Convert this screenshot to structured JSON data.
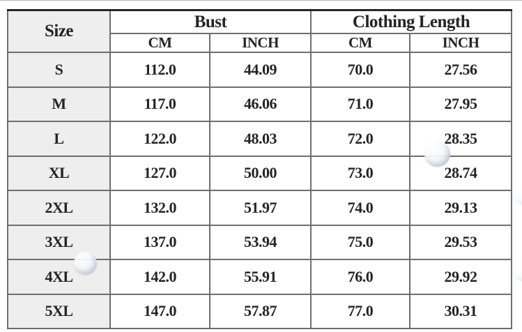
{
  "table": {
    "header": {
      "size": "Size",
      "bust": "Bust",
      "clothing_length": "Clothing Length",
      "units": [
        "CM",
        "INCH",
        "CM",
        "INCH"
      ]
    },
    "rows": [
      {
        "size": "S",
        "bust_cm": "112.0",
        "bust_inch": "44.09",
        "length_cm": "70.0",
        "length_inch": "27.56"
      },
      {
        "size": "M",
        "bust_cm": "117.0",
        "bust_inch": "46.06",
        "length_cm": "71.0",
        "length_inch": "27.95"
      },
      {
        "size": "L",
        "bust_cm": "122.0",
        "bust_inch": "48.03",
        "length_cm": "72.0",
        "length_inch": "28.35"
      },
      {
        "size": "XL",
        "bust_cm": "127.0",
        "bust_inch": "50.00",
        "length_cm": "73.0",
        "length_inch": "28.74"
      },
      {
        "size": "2XL",
        "bust_cm": "132.0",
        "bust_inch": "51.97",
        "length_cm": "74.0",
        "length_inch": "29.13"
      },
      {
        "size": "3XL",
        "bust_cm": "137.0",
        "bust_inch": "53.94",
        "length_cm": "75.0",
        "length_inch": "29.53"
      },
      {
        "size": "4XL",
        "bust_cm": "142.0",
        "bust_inch": "55.91",
        "length_cm": "76.0",
        "length_inch": "29.92"
      },
      {
        "size": "5XL",
        "bust_cm": "147.0",
        "bust_inch": "57.87",
        "length_cm": "77.0",
        "length_inch": "30.31"
      }
    ]
  },
  "chart_data": {
    "type": "table",
    "column_groups": [
      "Size",
      "Bust",
      "Clothing Length"
    ],
    "columns": [
      "Size",
      "Bust (CM)",
      "Bust (INCH)",
      "Clothing Length (CM)",
      "Clothing Length (INCH)"
    ],
    "rows": [
      [
        "S",
        112.0,
        44.09,
        70.0,
        27.56
      ],
      [
        "M",
        117.0,
        46.06,
        71.0,
        27.95
      ],
      [
        "L",
        122.0,
        48.03,
        72.0,
        28.35
      ],
      [
        "XL",
        127.0,
        50.0,
        73.0,
        28.74
      ],
      [
        "2XL",
        132.0,
        51.97,
        74.0,
        29.13
      ],
      [
        "3XL",
        137.0,
        53.94,
        75.0,
        29.53
      ],
      [
        "4XL",
        142.0,
        55.91,
        76.0,
        29.92
      ],
      [
        "5XL",
        147.0,
        57.87,
        77.0,
        30.31
      ]
    ]
  },
  "colors": {
    "size_column_bg": "#eeeeee",
    "grid_line": "#6e6e6e",
    "outer_border_top": "#262626",
    "text": "#242424",
    "bubble_tint": "#e3eaf1"
  }
}
